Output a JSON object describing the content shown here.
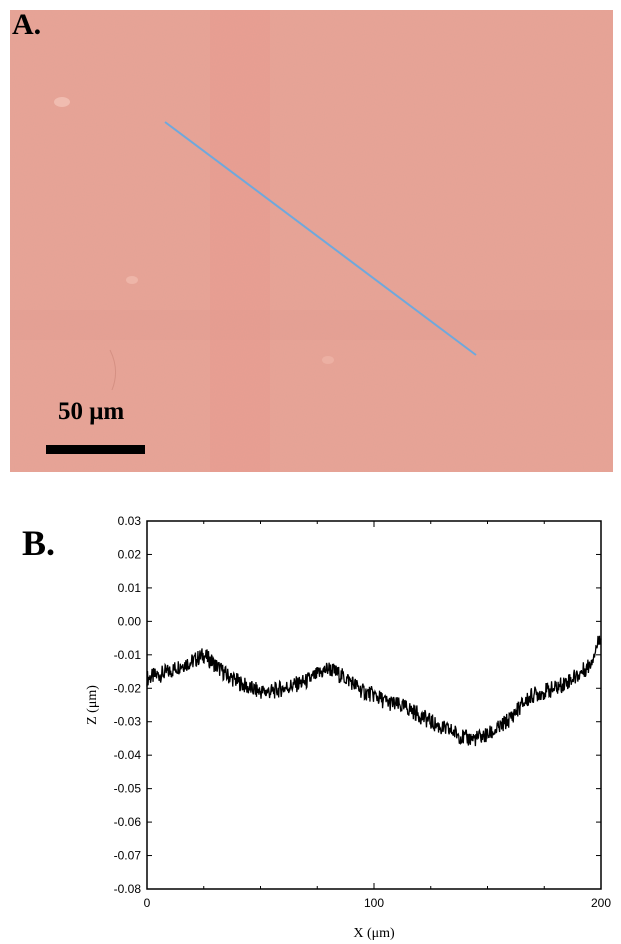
{
  "panel_a": {
    "label": "A.",
    "scale_bar_label": "50 μm",
    "surface_color": "#e9a396",
    "line_color": "#6fa8dc"
  },
  "panel_b": {
    "label": "B."
  },
  "chart_data": {
    "type": "line",
    "xlabel": "X (μm)",
    "ylabel": "Z (μm)",
    "xlim": [
      0,
      200
    ],
    "ylim": [
      -0.08,
      0.03
    ],
    "x_ticks": [
      "0",
      "100",
      "200"
    ],
    "y_ticks": [
      "0.03",
      "0.02",
      "0.01",
      "0.00",
      "-0.01",
      "-0.02",
      "-0.03",
      "-0.04",
      "-0.05",
      "-0.06",
      "-0.07",
      "-0.08"
    ],
    "grid": false,
    "series": [
      {
        "color": "#000000",
        "x": [
          0,
          5,
          10,
          15,
          20,
          25,
          30,
          35,
          40,
          45,
          50,
          55,
          60,
          65,
          70,
          75,
          80,
          85,
          90,
          95,
          100,
          105,
          110,
          115,
          120,
          125,
          130,
          135,
          140,
          145,
          150,
          155,
          160,
          165,
          170,
          175,
          180,
          185,
          190,
          195,
          200
        ],
        "y": [
          -0.017,
          -0.016,
          -0.015,
          -0.013,
          -0.012,
          -0.01,
          -0.013,
          -0.016,
          -0.018,
          -0.02,
          -0.021,
          -0.021,
          -0.02,
          -0.019,
          -0.018,
          -0.016,
          -0.014,
          -0.016,
          -0.018,
          -0.021,
          -0.022,
          -0.024,
          -0.025,
          -0.026,
          -0.028,
          -0.03,
          -0.032,
          -0.033,
          -0.035,
          -0.035,
          -0.034,
          -0.032,
          -0.029,
          -0.025,
          -0.022,
          -0.021,
          -0.02,
          -0.018,
          -0.016,
          -0.013,
          -0.004
        ]
      }
    ]
  }
}
